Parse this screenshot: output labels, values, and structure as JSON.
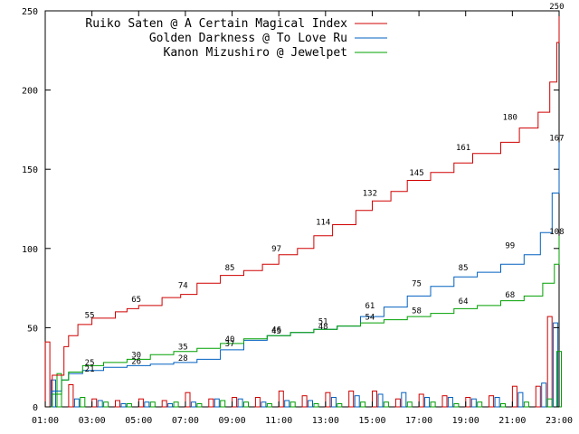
{
  "chart_data": {
    "type": "line",
    "title": "",
    "xlabel": "",
    "ylabel": "",
    "xlim": [
      1,
      23
    ],
    "ylim": [
      0,
      250
    ],
    "x_ticks": [
      "01:00",
      "03:00",
      "05:00",
      "07:00",
      "09:00",
      "11:00",
      "13:00",
      "15:00",
      "17:00",
      "19:00",
      "21:00",
      "23:00"
    ],
    "y_ticks": [
      "0",
      "50",
      "100",
      "150",
      "200",
      "250"
    ],
    "legend_position": "top-left",
    "grid": false,
    "series": [
      {
        "name": "Ruiko Saten @ A Certain Magical Index",
        "color": "#d00000",
        "points": [
          [
            1.0,
            0
          ],
          [
            1.3,
            20
          ],
          [
            1.8,
            38
          ],
          [
            2.0,
            45
          ],
          [
            2.4,
            52
          ],
          [
            3.0,
            56
          ],
          [
            4.0,
            60
          ],
          [
            4.5,
            62
          ],
          [
            5.0,
            64
          ],
          [
            6.0,
            69
          ],
          [
            6.8,
            71
          ],
          [
            7.5,
            78
          ],
          [
            8.5,
            83
          ],
          [
            9.5,
            86
          ],
          [
            10.3,
            90
          ],
          [
            11.0,
            96
          ],
          [
            11.8,
            100
          ],
          [
            12.5,
            108
          ],
          [
            13.3,
            115
          ],
          [
            14.3,
            124
          ],
          [
            15.0,
            130
          ],
          [
            15.8,
            136
          ],
          [
            16.5,
            143
          ],
          [
            17.5,
            148
          ],
          [
            18.5,
            154
          ],
          [
            19.3,
            160
          ],
          [
            20.5,
            167
          ],
          [
            21.3,
            176
          ],
          [
            22.1,
            186
          ],
          [
            22.6,
            205
          ],
          [
            22.9,
            230
          ],
          [
            23.0,
            250
          ]
        ]
      },
      {
        "name": "Golden Darkness @ To Love Ru",
        "color": "#0060c0",
        "points": [
          [
            1.0,
            0
          ],
          [
            1.3,
            10
          ],
          [
            1.7,
            17
          ],
          [
            2.0,
            21
          ],
          [
            2.6,
            23
          ],
          [
            3.5,
            25
          ],
          [
            4.5,
            26
          ],
          [
            5.5,
            27
          ],
          [
            6.5,
            28
          ],
          [
            7.5,
            30
          ],
          [
            8.5,
            36
          ],
          [
            9.5,
            42
          ],
          [
            10.5,
            45
          ],
          [
            11.5,
            47
          ],
          [
            12.5,
            49
          ],
          [
            13.5,
            51
          ],
          [
            14.5,
            57
          ],
          [
            15.5,
            63
          ],
          [
            16.5,
            70
          ],
          [
            17.5,
            76
          ],
          [
            18.5,
            82
          ],
          [
            19.5,
            85
          ],
          [
            20.5,
            90
          ],
          [
            21.5,
            96
          ],
          [
            22.2,
            110
          ],
          [
            22.7,
            135
          ],
          [
            23.0,
            167
          ]
        ]
      },
      {
        "name": "Kanon Mizushiro @ Jewelpet",
        "color": "#00a000",
        "points": [
          [
            1.0,
            0
          ],
          [
            1.3,
            8
          ],
          [
            1.7,
            17
          ],
          [
            2.0,
            22
          ],
          [
            2.6,
            26
          ],
          [
            3.5,
            28
          ],
          [
            4.5,
            30
          ],
          [
            5.5,
            33
          ],
          [
            6.5,
            35
          ],
          [
            7.5,
            37
          ],
          [
            8.5,
            40
          ],
          [
            9.5,
            43
          ],
          [
            10.5,
            45
          ],
          [
            11.5,
            47
          ],
          [
            12.5,
            49
          ],
          [
            13.5,
            51
          ],
          [
            14.5,
            53
          ],
          [
            15.5,
            55
          ],
          [
            16.5,
            57
          ],
          [
            17.5,
            59
          ],
          [
            18.5,
            62
          ],
          [
            19.5,
            64
          ],
          [
            20.5,
            67
          ],
          [
            21.5,
            70
          ],
          [
            22.3,
            78
          ],
          [
            22.8,
            90
          ],
          [
            23.0,
            108
          ]
        ]
      }
    ],
    "bars": {
      "series": [
        {
          "color": "#d00000",
          "x": [
            1.1,
            2.1,
            3.1,
            4.1,
            5.1,
            6.1,
            7.1,
            8.1,
            9.1,
            10.1,
            11.1,
            12.1,
            13.1,
            14.1,
            15.1,
            16.1,
            17.1,
            18.1,
            19.1,
            20.1,
            21.1,
            22.1,
            22.6
          ],
          "values": [
            41,
            14,
            5,
            4,
            5,
            4,
            9,
            5,
            6,
            6,
            10,
            7,
            9,
            10,
            10,
            5,
            8,
            7,
            6,
            7,
            13,
            13,
            57
          ]
        },
        {
          "color": "#0060c0",
          "x": [
            1.35,
            2.35,
            3.35,
            4.35,
            5.35,
            6.35,
            7.35,
            8.35,
            9.35,
            10.35,
            11.35,
            12.35,
            13.35,
            14.35,
            15.35,
            16.35,
            17.35,
            18.35,
            19.35,
            20.35,
            21.35,
            22.35,
            22.85
          ],
          "values": [
            17,
            5,
            4,
            2,
            3,
            2,
            3,
            5,
            5,
            3,
            4,
            4,
            6,
            7,
            8,
            9,
            6,
            6,
            5,
            6,
            9,
            15,
            53
          ]
        },
        {
          "color": "#00a000",
          "x": [
            1.6,
            2.6,
            3.6,
            4.6,
            5.6,
            6.6,
            7.6,
            8.6,
            9.6,
            10.6,
            11.6,
            12.6,
            13.6,
            14.6,
            15.6,
            16.6,
            17.6,
            18.6,
            19.6,
            20.6,
            21.6,
            22.6,
            23.0
          ],
          "values": [
            21,
            6,
            3,
            2,
            3,
            3,
            2,
            4,
            3,
            2,
            3,
            2,
            2,
            3,
            3,
            3,
            3,
            2,
            3,
            2,
            3,
            5,
            35
          ]
        }
      ]
    },
    "annotations": [
      {
        "x": 2.9,
        "y": 55,
        "text": "55",
        "series": 0
      },
      {
        "x": 4.9,
        "y": 65,
        "text": "65",
        "series": 0
      },
      {
        "x": 6.9,
        "y": 74,
        "text": "74",
        "series": 0
      },
      {
        "x": 8.9,
        "y": 85,
        "text": "85",
        "series": 0
      },
      {
        "x": 10.9,
        "y": 97,
        "text": "97",
        "series": 0
      },
      {
        "x": 12.9,
        "y": 114,
        "text": "114",
        "series": 0
      },
      {
        "x": 14.9,
        "y": 132,
        "text": "132",
        "series": 0
      },
      {
        "x": 16.9,
        "y": 145,
        "text": "145",
        "series": 0
      },
      {
        "x": 18.9,
        "y": 161,
        "text": "161",
        "series": 0
      },
      {
        "x": 20.9,
        "y": 180,
        "text": "180",
        "series": 0
      },
      {
        "x": 22.9,
        "y": 250,
        "text": "250",
        "series": 0
      },
      {
        "x": 2.9,
        "y": 21,
        "text": "21",
        "series": 1
      },
      {
        "x": 4.9,
        "y": 26,
        "text": "26",
        "series": 1
      },
      {
        "x": 6.9,
        "y": 28,
        "text": "28",
        "series": 1
      },
      {
        "x": 8.9,
        "y": 37,
        "text": "37",
        "series": 1
      },
      {
        "x": 10.9,
        "y": 46,
        "text": "46",
        "series": 1
      },
      {
        "x": 12.9,
        "y": 48,
        "text": "48",
        "series": 1
      },
      {
        "x": 14.9,
        "y": 61,
        "text": "61",
        "series": 1
      },
      {
        "x": 16.9,
        "y": 75,
        "text": "75",
        "series": 1
      },
      {
        "x": 18.9,
        "y": 85,
        "text": "85",
        "series": 1
      },
      {
        "x": 20.9,
        "y": 99,
        "text": "99",
        "series": 1
      },
      {
        "x": 22.9,
        "y": 167,
        "text": "167",
        "series": 1
      },
      {
        "x": 2.9,
        "y": 25,
        "text": "25",
        "series": 2
      },
      {
        "x": 4.9,
        "y": 30,
        "text": "30",
        "series": 2
      },
      {
        "x": 6.9,
        "y": 35,
        "text": "35",
        "series": 2
      },
      {
        "x": 8.9,
        "y": 40,
        "text": "40",
        "series": 2
      },
      {
        "x": 10.9,
        "y": 45,
        "text": "45",
        "series": 2
      },
      {
        "x": 12.9,
        "y": 51,
        "text": "51",
        "series": 2
      },
      {
        "x": 14.9,
        "y": 54,
        "text": "54",
        "series": 2
      },
      {
        "x": 16.9,
        "y": 58,
        "text": "58",
        "series": 2
      },
      {
        "x": 18.9,
        "y": 64,
        "text": "64",
        "series": 2
      },
      {
        "x": 20.9,
        "y": 68,
        "text": "68",
        "series": 2
      },
      {
        "x": 22.9,
        "y": 108,
        "text": "108",
        "series": 2
      }
    ]
  }
}
